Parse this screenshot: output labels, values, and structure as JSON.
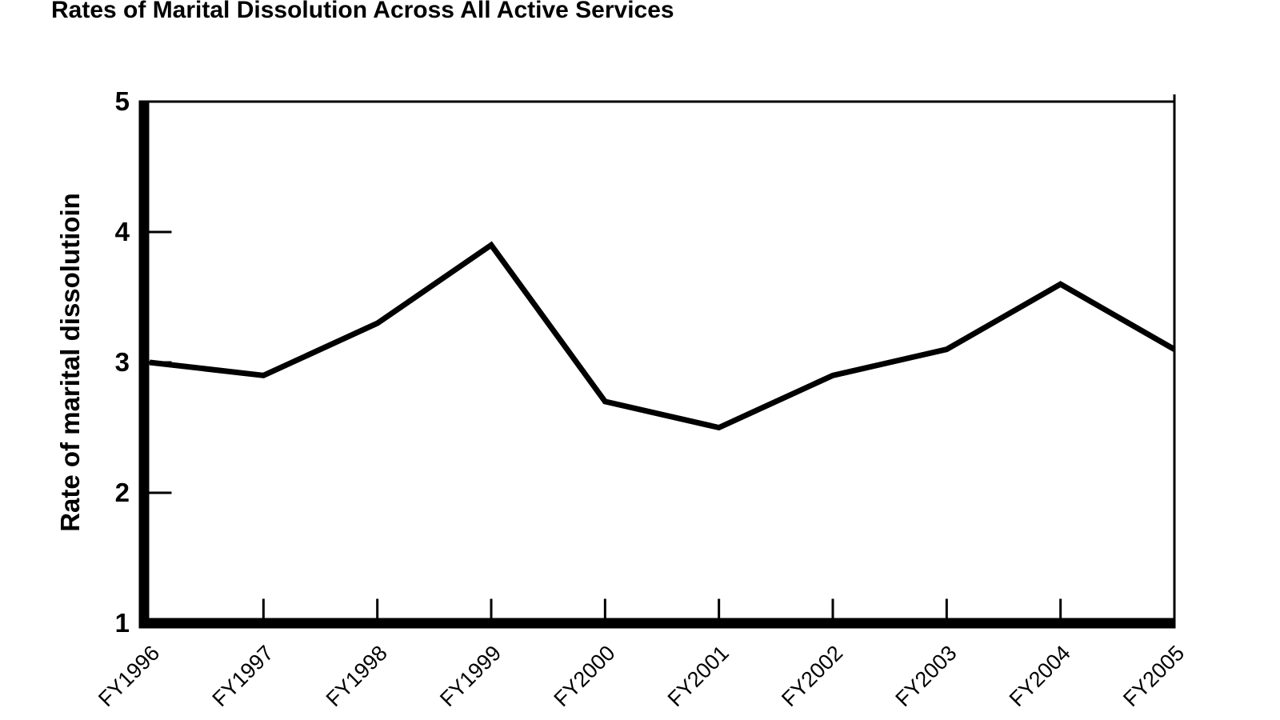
{
  "page": {
    "background": "#ffffff",
    "foreground": "#000000"
  },
  "chart_data": {
    "type": "line",
    "title": "Rates of Marital Dissolution Across All Active Services",
    "ylabel": "Rate of marital dissolutioin",
    "xlabel": "",
    "categories": [
      "FY1996",
      "FY1997",
      "FY1998",
      "FY1999",
      "FY2000",
      "FY2001",
      "FY2002",
      "FY2003",
      "FY2004",
      "FY2005"
    ],
    "values": [
      3.0,
      2.9,
      3.3,
      3.9,
      2.7,
      2.5,
      2.9,
      3.1,
      3.6,
      3.1
    ],
    "ylim": [
      1,
      5
    ],
    "yticks": [
      1,
      2,
      3,
      4,
      5
    ],
    "grid": false,
    "legend": "none",
    "line_color": "#000000",
    "axis_color": "#000000"
  }
}
